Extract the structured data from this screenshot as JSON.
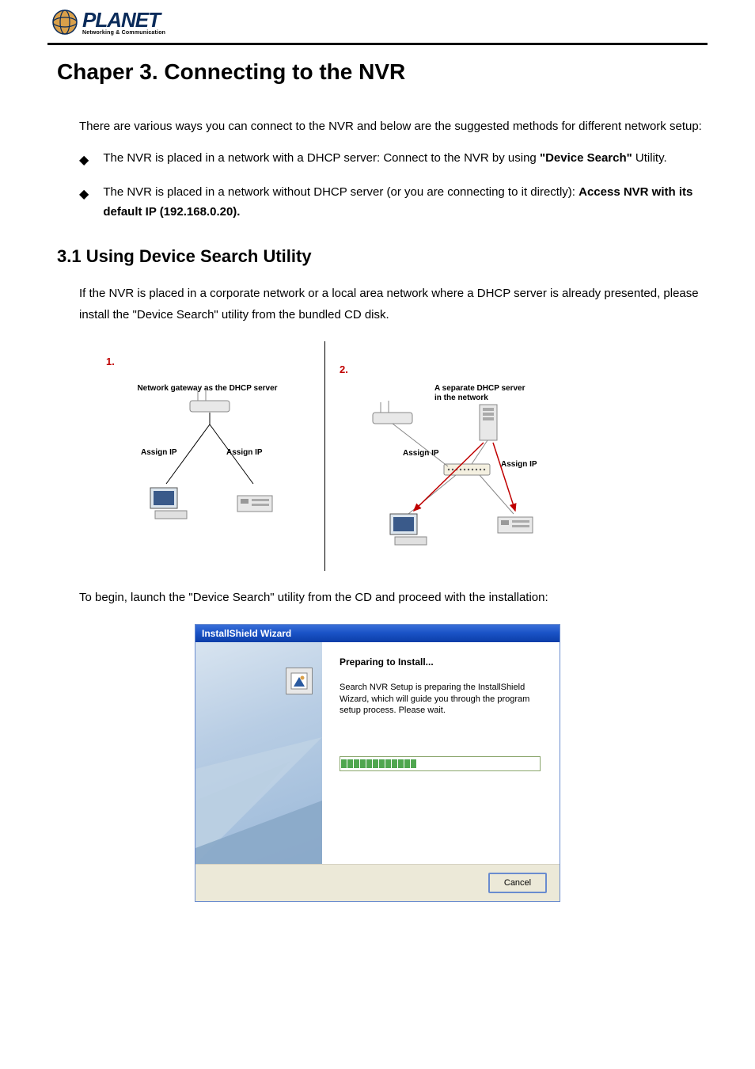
{
  "logo": {
    "main": "PLANET",
    "sub": "Networking & Communication"
  },
  "chapter_title": "Chaper 3. Connecting to the NVR",
  "intro": {
    "lead": "There are various ways you can connect to the NVR and below are the suggested methods for different network setup:",
    "bullet1_pre": "The NVR is placed in a network with a DHCP server: Connect to the NVR by using ",
    "bullet1_bold": "\"Device Search\"",
    "bullet1_post": " Utility.",
    "bullet2_pre": "The NVR is placed in a network without DHCP server (or you are connecting to it directly): ",
    "bullet2_bold": "Access NVR with its default IP (192.168.0.20)."
  },
  "section_title": "3.1 Using Device Search Utility",
  "section_body": "If the NVR is placed in a corporate network or a local area network where a DHCP server is already presented, please install the \"Device Search\" utility from the bundled CD disk.",
  "diagram": {
    "num1": "1.",
    "num2": "2.",
    "gateway_label": "Network gateway as the DHCP server",
    "separate_label": "A separate DHCP server in the network",
    "assign_ip": "Assign IP"
  },
  "body2": "To begin, launch the \"Device Search\" utility from the CD and proceed with the installation:",
  "installer": {
    "title": "InstallShield Wizard",
    "prep_title": "Preparing to Install...",
    "prep_text": "Search NVR Setup is preparing the InstallShield Wizard, which will guide you through the program setup process. Please wait.",
    "cancel": "Cancel",
    "progress_blocks": 12
  },
  "colors": {
    "red_label": "#c00000",
    "titlebar_start": "#3a6fd8",
    "titlebar_end": "#0b3da8",
    "footer_bg": "#ece9d8",
    "progress_green": "#4fa64f",
    "border_blue": "#6a8ccf"
  }
}
